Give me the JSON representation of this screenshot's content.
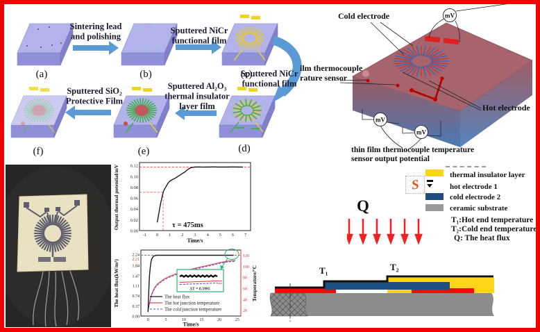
{
  "figure": {
    "border_color": "#ee0202",
    "background": "#ffffff"
  },
  "process_flow": {
    "step_labels": [
      "(a)",
      "(b)",
      "(c)",
      "(d)",
      "(e)",
      "(f)"
    ],
    "arrows": {
      "a_b": "Sintering lead\nand polishing",
      "b_c": "Sputtered NiCr\nfunctional film",
      "c_d": "Sputtered NiCr\nfunctional film",
      "d_e": "Sputtered Al₂O₃\nthermal insulator\nlayer film",
      "e_f": "Sputtered SiO₂\nProtective Film"
    },
    "arrow_color": "#5b9bd5",
    "substrate_color": "#abace6"
  },
  "sensor_diagram": {
    "cold_electrode_label": "Cold electrode",
    "hot_electrode_label": "Hot electrode",
    "side_label": "ilm thermocouple\nrature sensor",
    "meter_label": "mV",
    "output_label": "thin film thermocouple temperature\nsensor output potential"
  },
  "legend": {
    "items": [
      {
        "swatch_color": "#ffd51c",
        "label": "thermal insulator layer"
      },
      {
        "swatch_color": "missing-image-placeholder",
        "label": "hot electrode 1"
      },
      {
        "swatch_color": "#1c4f80",
        "label": "cold electrode 2"
      },
      {
        "swatch_color": "#9a9a9a",
        "label": "ceramic substrate"
      }
    ],
    "notes": [
      "T₁:Hot end temperature",
      "T₂:Cold end temperature",
      "Q: The heat flux"
    ],
    "heat_flux_symbol": "Q",
    "heat_arrow_color": "#ee2222"
  },
  "cross_section": {
    "t1": "T₁",
    "t2": "T₂"
  },
  "chart_data": [
    {
      "type": "line",
      "title": "",
      "xlabel": "Time/s",
      "ylabel": "Output thermal potential/mV",
      "xlim": [
        -1.4,
        7.4
      ],
      "xticks": [
        "-1",
        "0",
        "1",
        "2",
        "3",
        "4",
        "5",
        "6",
        "7"
      ],
      "ylim": [
        0,
        0.125
      ],
      "yticks": [
        "0.00",
        "0.02",
        "0.04",
        "0.06",
        "0.08",
        "0.10",
        "0.12"
      ],
      "grid": false,
      "annotation": "τ = 475ms",
      "reference": {
        "steady_state_mV": 0.117,
        "tau_mV": 0.0705,
        "tau_s": 0.475
      },
      "series": [
        {
          "name": "output thermal potential",
          "color": "#1a1a1a",
          "x": [
            0,
            0.05,
            0.1,
            0.15,
            0.2,
            0.25,
            0.3,
            0.35,
            0.4,
            0.475,
            0.55,
            0.65,
            0.75,
            0.85,
            1.0,
            1.1,
            1.25,
            1.4,
            1.6,
            1.8,
            2.0,
            2.2,
            2.4,
            2.6,
            2.8,
            3.0,
            3.3,
            3.6,
            4.0,
            4.4,
            4.8,
            5.2,
            5.6,
            6.0,
            6.4,
            6.8
          ],
          "y": [
            0.015,
            0.021,
            0.028,
            0.034,
            0.041,
            0.047,
            0.053,
            0.058,
            0.063,
            0.0705,
            0.075,
            0.079,
            0.083,
            0.087,
            0.091,
            0.0925,
            0.0945,
            0.096,
            0.099,
            0.102,
            0.105,
            0.108,
            0.112,
            0.115,
            0.1165,
            0.117,
            0.1172,
            0.1168,
            0.117,
            0.1172,
            0.1169,
            0.1171,
            0.117,
            0.1172,
            0.1169,
            0.117
          ]
        }
      ]
    },
    {
      "type": "line",
      "title": "",
      "xlabel": "Time/s",
      "ylabel_left": "The heat flux(kW/m²)",
      "ylabel_right": "Temperature/°C",
      "xlim": [
        -2,
        26
      ],
      "xticks": [
        "0",
        "5",
        "10",
        "15",
        "20",
        "25"
      ],
      "ylim_left": [
        0,
        2.4
      ],
      "yticks_left": [
        "0.00",
        "0.37",
        "0.74",
        "1.11",
        "1.47",
        "1.84",
        "2.24"
      ],
      "steady_marker": "2.21",
      "ylim_right": [
        10,
        130
      ],
      "yticks_right": [
        "20",
        "40",
        "60",
        "80",
        "100",
        "120"
      ],
      "legend": [
        "The heat flux",
        "The hot junction temperature",
        "The cold junction temperature"
      ],
      "legend_position": "center-left",
      "inset_annotation": "ΔT = 0.3995",
      "series": [
        {
          "name": "The heat flux",
          "axis": "left",
          "color": "#1a1a1a",
          "x": [
            0,
            0.1,
            0.25,
            0.4,
            0.6,
            0.8,
            1.0,
            1.3,
            1.6,
            2.0,
            2.5,
            3,
            4,
            6,
            8,
            10,
            12,
            14,
            16,
            18,
            20,
            22,
            24
          ],
          "y": [
            0.15,
            0.55,
            1.05,
            1.45,
            1.75,
            1.95,
            2.06,
            2.14,
            2.18,
            2.2,
            2.21,
            2.21,
            2.21,
            2.21,
            2.21,
            2.21,
            2.21,
            2.21,
            2.21,
            2.21,
            2.21,
            2.21,
            2.21
          ]
        },
        {
          "name": "The hot junction temperature",
          "axis": "right",
          "color": "#e05060",
          "x": [
            0,
            0.3,
            0.6,
            1,
            1.5,
            2,
            2.5,
            3,
            4,
            5,
            6,
            8,
            10,
            12,
            14,
            16,
            18,
            20,
            22,
            23.5,
            24.5
          ],
          "y": [
            20,
            30,
            40,
            49,
            57,
            63,
            67,
            70,
            75,
            79,
            82,
            87,
            91,
            95,
            98,
            101,
            104,
            107,
            109.5,
            110.5,
            111
          ]
        },
        {
          "name": "The cold junction temperature",
          "axis": "right",
          "color": "#5050e0",
          "dashed": true,
          "x": [
            0,
            0.3,
            0.6,
            1,
            1.5,
            2,
            2.5,
            3,
            4,
            5,
            6,
            8,
            10,
            12,
            14,
            16,
            18,
            20,
            22,
            23.5,
            24.5
          ],
          "y": [
            19,
            28.5,
            38.5,
            47.5,
            55.5,
            61.5,
            65.5,
            68.5,
            73.5,
            77.5,
            80.5,
            85.5,
            89.5,
            93.5,
            96.5,
            99.5,
            102.5,
            105.5,
            108,
            109,
            109.6
          ]
        }
      ]
    }
  ]
}
